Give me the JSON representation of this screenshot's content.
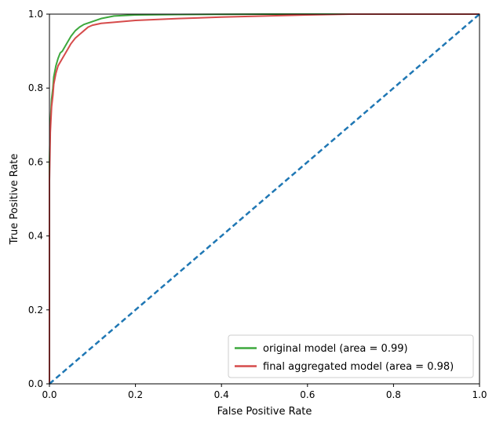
{
  "chart_data": {
    "type": "line",
    "title": "",
    "xlabel": "False Positive Rate",
    "ylabel": "True Positive Rate",
    "xlim": [
      0.0,
      1.0
    ],
    "ylim": [
      0.0,
      1.0
    ],
    "x_ticks": [
      0.0,
      0.2,
      0.4,
      0.6,
      0.8,
      1.0
    ],
    "y_ticks": [
      0.0,
      0.2,
      0.4,
      0.6,
      0.8,
      1.0
    ],
    "x_tick_labels": [
      "0.0",
      "0.2",
      "0.4",
      "0.6",
      "0.8",
      "1.0"
    ],
    "y_tick_labels": [
      "0.0",
      "0.2",
      "0.4",
      "0.6",
      "0.8",
      "1.0"
    ],
    "grid": false,
    "legend_position": "bottom-right",
    "series": [
      {
        "name": "original model (area = 0.99)",
        "color": "#3da83d",
        "dashed": false,
        "x": [
          0.0,
          0.0,
          0.002,
          0.005,
          0.008,
          0.01,
          0.015,
          0.02,
          0.025,
          0.03,
          0.04,
          0.05,
          0.06,
          0.07,
          0.08,
          0.1,
          0.12,
          0.15,
          0.2,
          0.3,
          0.5,
          1.0
        ],
        "y": [
          0.0,
          0.6,
          0.7,
          0.77,
          0.8,
          0.83,
          0.86,
          0.88,
          0.895,
          0.9,
          0.92,
          0.94,
          0.955,
          0.965,
          0.972,
          0.98,
          0.988,
          0.995,
          0.998,
          0.999,
          1.0,
          1.0
        ]
      },
      {
        "name": "final aggregated model (area = 0.98)",
        "color": "#d64b4b",
        "dashed": false,
        "x": [
          0.0,
          0.0,
          0.002,
          0.005,
          0.008,
          0.01,
          0.015,
          0.02,
          0.03,
          0.04,
          0.05,
          0.06,
          0.07,
          0.08,
          0.09,
          0.1,
          0.12,
          0.15,
          0.2,
          0.3,
          0.4,
          0.5,
          0.6,
          0.7,
          1.0
        ],
        "y": [
          0.0,
          0.55,
          0.68,
          0.75,
          0.78,
          0.81,
          0.84,
          0.86,
          0.88,
          0.9,
          0.92,
          0.935,
          0.945,
          0.955,
          0.965,
          0.97,
          0.975,
          0.978,
          0.983,
          0.988,
          0.992,
          0.995,
          0.998,
          1.0,
          1.0
        ]
      },
      {
        "name": "",
        "color": "#1f77b4",
        "dashed": true,
        "x": [
          0.0,
          1.0
        ],
        "y": [
          0.0,
          1.0
        ]
      }
    ]
  }
}
